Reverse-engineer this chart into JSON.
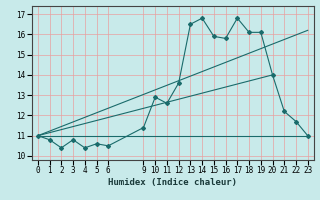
{
  "title": "",
  "xlabel": "Humidex (Indice chaleur)",
  "background_color": "#c8eaea",
  "grid_color": "#e8a0a0",
  "line_color": "#1a6b6b",
  "xlim": [
    -0.5,
    23.5
  ],
  "ylim": [
    9.8,
    17.4
  ],
  "xticks": [
    0,
    1,
    2,
    3,
    4,
    5,
    6,
    9,
    10,
    11,
    12,
    13,
    14,
    15,
    16,
    17,
    18,
    19,
    20,
    21,
    22,
    23
  ],
  "yticks": [
    10,
    11,
    12,
    13,
    14,
    15,
    16,
    17
  ],
  "series1_x": [
    0,
    1,
    2,
    3,
    4,
    5,
    6,
    9,
    10,
    11,
    12,
    13,
    14,
    15,
    16,
    17,
    18,
    19,
    20,
    21,
    22,
    23
  ],
  "series1_y": [
    11.0,
    10.8,
    10.4,
    10.8,
    10.4,
    10.6,
    10.5,
    11.4,
    12.9,
    12.6,
    13.6,
    16.5,
    16.8,
    15.9,
    15.8,
    16.8,
    16.1,
    16.1,
    14.0,
    12.2,
    11.7,
    11.0
  ],
  "series2_x": [
    0,
    23
  ],
  "series2_y": [
    11.0,
    11.0
  ],
  "series3_x": [
    0,
    23
  ],
  "series3_y": [
    11.0,
    16.2
  ],
  "series4_x": [
    0,
    20
  ],
  "series4_y": [
    11.0,
    14.0
  ]
}
